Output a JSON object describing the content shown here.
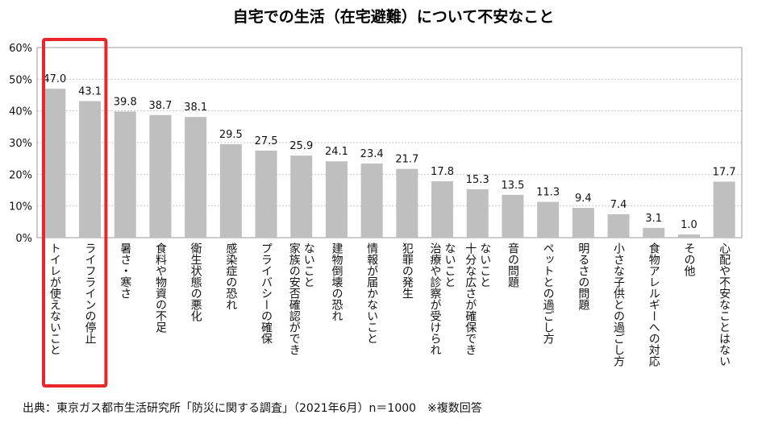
{
  "chart_data": {
    "type": "bar",
    "title": "自宅での生活（在宅避難）について不安なこと",
    "ylim": [
      0,
      60
    ],
    "yticks": [
      "0%",
      "10%",
      "20%",
      "30%",
      "40%",
      "50%",
      "60%"
    ],
    "categories": [
      "トイレが使えないこと",
      "ライフラインの停止",
      "暑さ・寒さ",
      "食料や物資の不足",
      "衛生状態の悪化",
      "感染症の恐れ",
      "プライバシーの確保",
      "家族の安否確認ができないこと",
      "建物倒壊の恐れ",
      "情報が届かないこと",
      "犯罪の発生",
      "治療や診察が受けられないこと",
      "十分な広さが確保できないこと",
      "音の問題",
      "ペットとの過ごし方",
      "明るさの問題",
      "小さな子供との過ごし方",
      "食物アレルギーへの対応",
      "その他",
      "心配や不安なことはない"
    ],
    "category_lines": [
      [
        "トイレが使えないこと"
      ],
      [
        "ライフラインの停止"
      ],
      [
        "暑さ・寒さ"
      ],
      [
        "食料や物資の不足"
      ],
      [
        "衛生状態の悪化"
      ],
      [
        "感染症の恐れ"
      ],
      [
        "プライバシーの確保"
      ],
      [
        "家族の安否確認ができ",
        "ないこと"
      ],
      [
        "建物倒壊の恐れ"
      ],
      [
        "情報が届かないこと"
      ],
      [
        "犯罪の発生"
      ],
      [
        "治療や診察が受けられ",
        "ないこと"
      ],
      [
        "十分な広さが確保でき",
        "ないこと"
      ],
      [
        "音の問題"
      ],
      [
        "ペットとの過ごし方"
      ],
      [
        "明るさの問題"
      ],
      [
        "小さな子供との過ごし方"
      ],
      [
        "食物アレルギーへの対応"
      ],
      [
        "その他"
      ],
      [
        "心配や不安なことはない"
      ]
    ],
    "values": [
      47.0,
      43.1,
      39.8,
      38.7,
      38.1,
      29.5,
      27.5,
      25.9,
      24.1,
      23.4,
      21.7,
      17.8,
      15.3,
      13.5,
      11.3,
      9.4,
      7.4,
      3.1,
      1.0,
      17.7
    ],
    "value_labels": [
      "47.0",
      "43.1",
      "39.8",
      "38.7",
      "38.1",
      "29.5",
      "27.5",
      "25.9",
      "24.1",
      "23.4",
      "21.7",
      "17.8",
      "15.3",
      "13.5",
      "11.3",
      "9.4",
      "7.4",
      "3.1",
      "1.0",
      "17.7"
    ],
    "highlighted_categories": [
      "トイレが使えないこと",
      "ライフラインの停止"
    ],
    "grid": true,
    "colors": {
      "bar": "#bfbfbf",
      "highlight_box": "#e8262b",
      "grid": "#c8c8c8",
      "axis": "#999999",
      "text": "#111111"
    }
  },
  "footer": {
    "source": "出典：東京ガス都市生活研究所「防災に関する調査」（2021年6月）n＝1000　※複数回答"
  }
}
